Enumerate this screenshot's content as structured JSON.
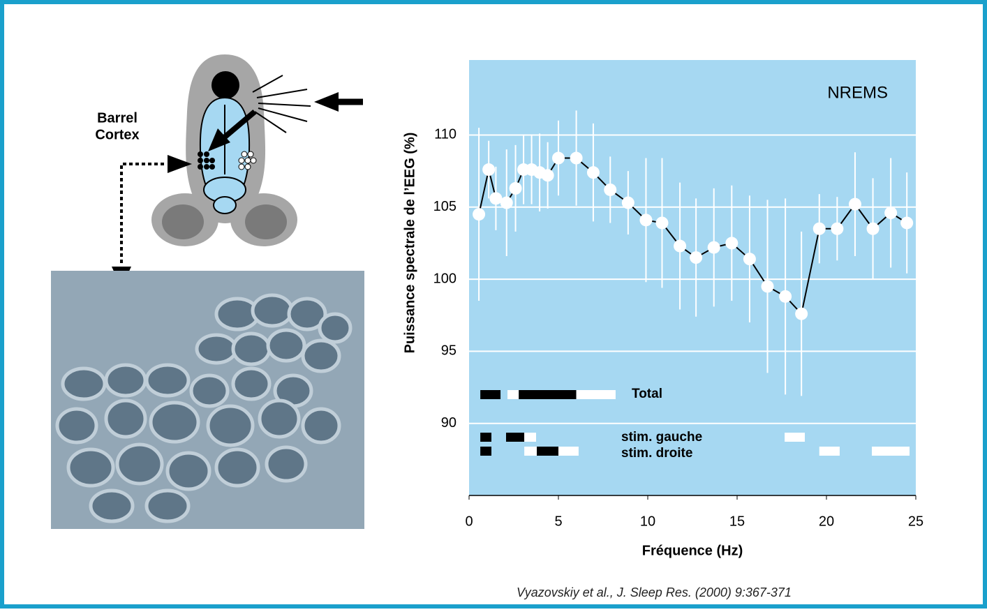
{
  "chart_data": {
    "type": "errorbar-line",
    "title": "NREMS",
    "y_label": "Puissance spectrale de l’EEG (%)",
    "x_label": "Fréquence (Hz)",
    "xlim": [
      0,
      25
    ],
    "xticks": [
      0,
      5,
      10,
      15,
      20,
      25
    ],
    "ylim": [
      85,
      115.2
    ],
    "yticks": [
      90,
      95,
      100,
      105,
      110
    ],
    "grid": true,
    "background": "#a6d8f2",
    "color": "#ffffff",
    "x": [
      0.55,
      1.1,
      1.5,
      2.1,
      2.6,
      3.05,
      3.5,
      3.95,
      4.4,
      5.0,
      6.0,
      6.95,
      7.9,
      8.9,
      9.9,
      10.8,
      11.8,
      12.7,
      13.7,
      14.7,
      15.7,
      16.7,
      17.7,
      18.6,
      19.6,
      20.6,
      21.6,
      22.6,
      23.6,
      24.5
    ],
    "values": [
      104.5,
      107.6,
      105.6,
      105.3,
      106.3,
      107.6,
      107.6,
      107.4,
      107.2,
      108.4,
      108.4,
      107.4,
      106.2,
      105.3,
      104.1,
      103.9,
      102.3,
      101.5,
      102.2,
      102.5,
      101.4,
      99.5,
      98.8,
      97.6,
      103.5,
      103.5,
      105.2,
      103.5,
      104.6,
      103.9
    ],
    "errors": [
      6,
      2,
      2.2,
      3.7,
      3,
      2.4,
      2.4,
      2.7,
      2.3,
      2.6,
      3.3,
      3.4,
      2.3,
      2.2,
      4.3,
      4.5,
      4.4,
      4.1,
      4.1,
      4,
      4.4,
      6,
      6.8,
      5.7,
      2.4,
      2.2,
      3.6,
      3.5,
      3.8,
      3.5
    ],
    "significance": [
      {
        "label": "Total",
        "segments": [
          {
            "start": 0.63,
            "end": 1.76,
            "color": "#000000"
          },
          {
            "start": 2.15,
            "end": 2.78,
            "color": "#ffffff"
          },
          {
            "start": 2.78,
            "end": 6.0,
            "color": "#000000"
          },
          {
            "start": 6.0,
            "end": 8.2,
            "color": "#ffffff"
          }
        ]
      },
      {
        "label": "stim. gauche",
        "segments": [
          {
            "start": 0.63,
            "end": 1.25,
            "color": "#000000"
          },
          {
            "start": 2.07,
            "end": 3.09,
            "color": "#000000"
          },
          {
            "start": 3.09,
            "end": 3.75,
            "color": "#ffffff"
          },
          {
            "start": 17.66,
            "end": 18.79,
            "color": "#ffffff"
          }
        ]
      },
      {
        "label": "stim. droite",
        "segments": [
          {
            "start": 0.63,
            "end": 1.25,
            "color": "#000000"
          },
          {
            "start": 3.09,
            "end": 3.79,
            "color": "#ffffff"
          },
          {
            "start": 3.79,
            "end": 5.0,
            "color": "#000000"
          },
          {
            "start": 5.0,
            "end": 6.13,
            "color": "#ffffff"
          },
          {
            "start": 19.6,
            "end": 20.74,
            "color": "#ffffff"
          },
          {
            "start": 22.54,
            "end": 24.65,
            "color": "#ffffff"
          }
        ]
      }
    ]
  },
  "figure": {
    "label_line1": "Barrel",
    "label_line2": "Cortex",
    "citation": "Vyazovskiy et al., J. Sleep Res. (2000) 9:367-371"
  }
}
